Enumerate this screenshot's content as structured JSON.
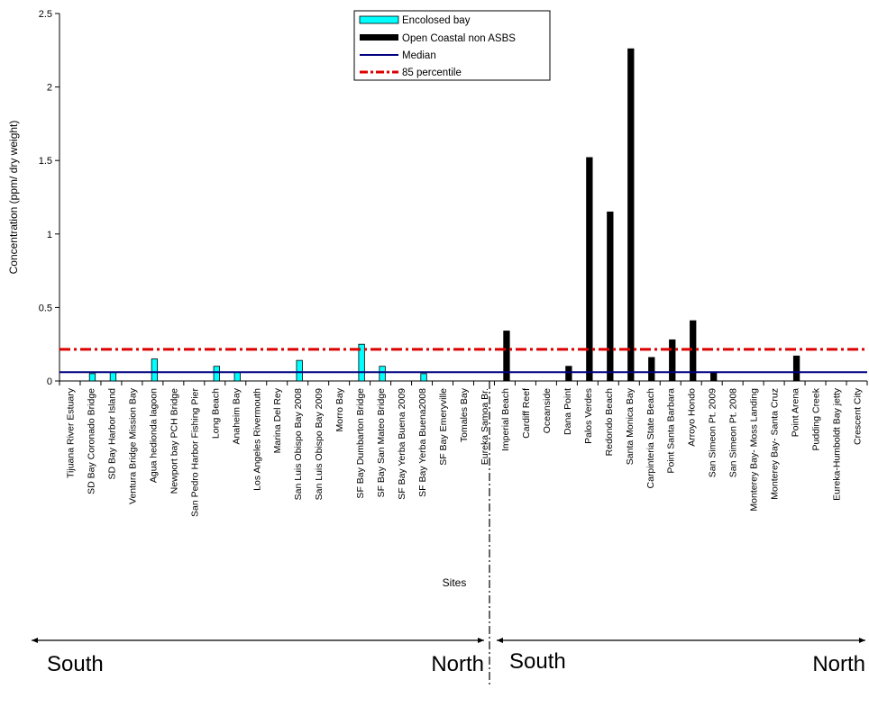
{
  "chart_data": {
    "type": "bar",
    "xlabel": "Sites",
    "ylabel": "Concentration (ppm/ dry weight)",
    "ylim": [
      0,
      2.5
    ],
    "yticks": [
      "0",
      "0.5",
      "1",
      "1.5",
      "2",
      "2.5"
    ],
    "grid": false,
    "legend_position": "top-center",
    "categories": [
      "Tijuana River Estuary",
      "SD Bay Coronado Bridge",
      "SD Bay Harbor Island",
      "Ventura Bridge Mission Bay",
      "Agua hedionda lagoon",
      "Newport bay PCH Bridge",
      "San Pedro Harbor  Fishing Pier",
      "Long Beach",
      "Anaheim Bay",
      "Los Angeles Rivermouth",
      "Marina Del Rey",
      "San Luis Obispo Bay 2008",
      "San Luis Obispo Bay 2009",
      "Morro Bay",
      "SF Bay Dumbarton Bridge",
      "SF Bay San Mateo Bridge",
      "SF Bay Yerba Buena 2009",
      "SF Bay Yerba Buena2008",
      "SF Bay Emeryville",
      "Tomales Bay",
      "Eureka Samoa Br.",
      "Imperial Beach",
      "Cardiff Reef",
      "Oceanside",
      "Dana Point",
      "Palos Verdes",
      "Redondo Beach",
      "Santa Monica Bay",
      "Carpinteria State Beach",
      "Point Santa Barbara",
      "Arroyo Hondo",
      "San Simeon Pt. 2009",
      "San Simeon Pt. 2008",
      "Monterey Bay- Moss Landing",
      "Monterey Bay- Santa Cruz",
      "Point Arena",
      "Pudding Creek",
      "Eureka-Humboldt Bay jetty",
      "Crescent City"
    ],
    "series": [
      {
        "name": "Encolosed bay",
        "color": "#00ffff",
        "values": [
          0,
          0.05,
          0.06,
          0,
          0.15,
          0,
          0,
          0.1,
          0.06,
          0,
          0,
          0.14,
          0,
          0,
          0.25,
          0.1,
          0,
          0.05,
          0,
          0,
          0,
          null,
          null,
          null,
          null,
          null,
          null,
          null,
          null,
          null,
          null,
          null,
          null,
          null,
          null,
          null,
          null,
          null,
          null
        ]
      },
      {
        "name": "Open Coastal non ASBS",
        "color": "#000000",
        "values": [
          null,
          null,
          null,
          null,
          null,
          null,
          null,
          null,
          null,
          null,
          null,
          null,
          null,
          null,
          null,
          null,
          null,
          null,
          null,
          null,
          null,
          0.34,
          0,
          0,
          0.1,
          1.52,
          1.15,
          2.26,
          0.16,
          0.28,
          0.41,
          0.06,
          0,
          0,
          0,
          0.17,
          0,
          0,
          0
        ]
      }
    ],
    "reference_lines": [
      {
        "name": "Median",
        "value": 0.06,
        "color": "#000080",
        "style": "solid"
      },
      {
        "name": "85 percentile",
        "value": 0.215,
        "color": "#dd0000",
        "style": "dash-dot"
      }
    ],
    "annotations": {
      "left_south": "South",
      "left_north": "North",
      "right_south": "South",
      "right_north": "North"
    }
  }
}
